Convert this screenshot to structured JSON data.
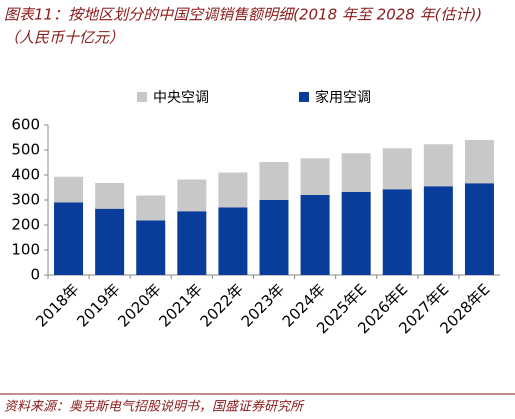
{
  "chart_data": {
    "type": "bar",
    "stacked": true,
    "title": "图表11：按地区划分的中国空调销售额明细(2018 年至 2028 年(估计))",
    "subtitle": "（人民币十亿元）",
    "source": "资料来源：奥克斯电气招股说明书，国盛证券研究所",
    "categories": [
      "2018年",
      "2019年",
      "2020年",
      "2021年",
      "2022年",
      "2023年",
      "2024年",
      "2025年E",
      "2026年E",
      "2027年E",
      "2028年E"
    ],
    "series": [
      {
        "name": "中央空调",
        "color": "#c8c8c8",
        "values": [
          103,
          103,
          100,
          127,
          140,
          152,
          147,
          155,
          164,
          168,
          173
        ]
      },
      {
        "name": "家用空调",
        "color": "#0a3c9c",
        "values": [
          290,
          265,
          218,
          255,
          270,
          300,
          320,
          332,
          343,
          355,
          367
        ]
      }
    ],
    "ylim": [
      0,
      600
    ],
    "yticks": [
      0,
      100,
      200,
      300,
      400,
      500,
      600
    ],
    "grid": false
  }
}
